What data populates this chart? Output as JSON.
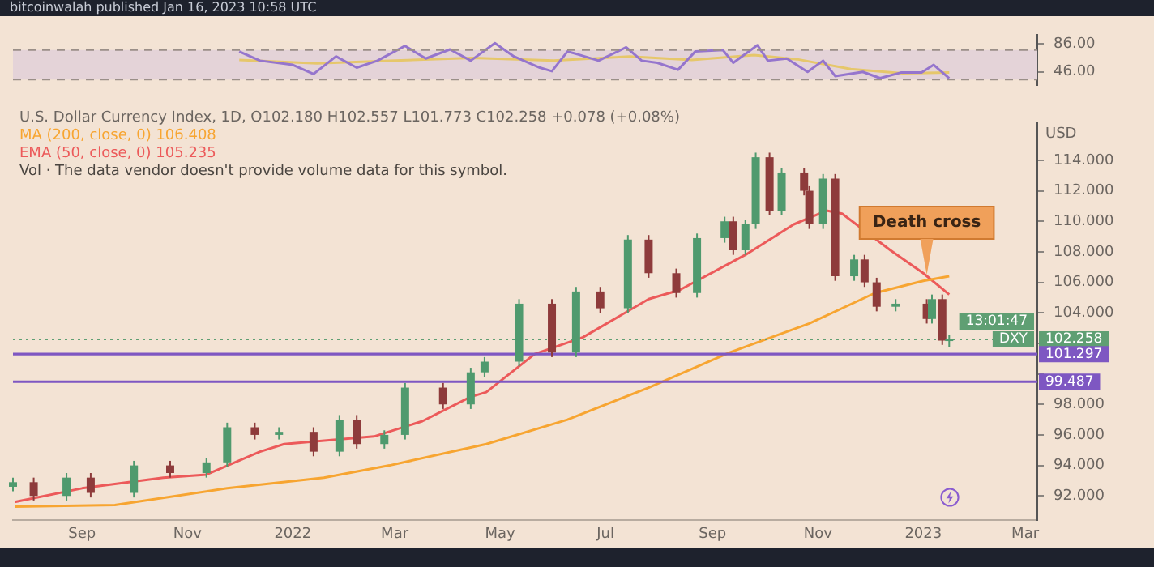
{
  "chart_data": [
    {
      "type": "line",
      "title": "bitcoinwalah published Jan 16, 2023 10:58 UTC",
      "tick_labels": "y",
      "xlim": [
        "2021-07-23",
        "2023-03-08"
      ],
      "ylim": [
        27,
        99
      ],
      "yticks": [
        {
          "value": 46,
          "label": "46.00"
        },
        {
          "value": 86,
          "label": "86.00"
        }
      ],
      "bands": [
        {
          "axis": "y",
          "from": 35,
          "to": 77,
          "color": "#e4d3d8"
        }
      ],
      "ref_lines": [
        {
          "axis": "y",
          "value": 77,
          "color": "#9a8f88",
          "line_style": "dashed"
        },
        {
          "axis": "y",
          "value": 35,
          "color": "#9a8f88",
          "line_style": "dashed"
        }
      ],
      "series": [
        {
          "color": "#9575cd",
          "x": [
            "2021-12-01",
            "2021-12-13",
            "2022-01-01",
            "2022-01-13",
            "2022-01-26",
            "2022-02-07",
            "2022-02-19",
            "2022-03-07",
            "2022-03-19",
            "2022-04-02",
            "2022-04-14",
            "2022-04-28",
            "2022-05-09",
            "2022-05-24",
            "2022-05-31",
            "2022-06-09",
            "2022-06-15",
            "2022-06-27",
            "2022-07-13",
            "2022-07-22",
            "2022-07-31",
            "2022-08-12",
            "2022-08-22",
            "2022-09-07",
            "2022-09-13",
            "2022-09-27",
            "2022-10-03",
            "2022-10-14",
            "2022-10-26",
            "2022-11-04",
            "2022-11-11",
            "2022-11-27",
            "2022-12-07",
            "2022-12-19",
            "2022-12-31",
            "2023-01-07",
            "2023-01-16"
          ],
          "values": [
            75,
            62,
            56,
            43,
            68,
            52,
            62,
            83,
            65,
            78,
            62,
            87,
            68,
            52,
            47,
            75,
            71,
            62,
            81,
            62,
            59,
            49,
            75,
            77,
            59,
            84,
            62,
            65,
            46,
            62,
            40,
            46,
            37,
            45,
            45,
            56,
            37
          ]
        },
        {
          "color": "#e6c76b",
          "x": [
            "2021-12-01",
            "2022-01-15",
            "2022-03-01",
            "2022-04-15",
            "2022-06-01",
            "2022-07-15",
            "2022-08-20",
            "2022-09-25",
            "2022-10-20",
            "2022-11-20",
            "2022-12-20",
            "2023-01-16"
          ],
          "values": [
            63,
            58,
            62,
            66,
            62,
            68,
            63,
            70,
            64,
            50,
            44,
            45
          ]
        }
      ]
    },
    {
      "type": "candlestick",
      "title": "U.S. Dollar Currency Index, 1D, O102.180 H102.557 L101.773 C102.258 +0.078 (+0.08%)",
      "ylabel": "USD",
      "legend": "top left",
      "xlim": [
        "2021-07-23",
        "2023-03-08"
      ],
      "xticks": [
        {
          "value": "2021-09-01",
          "label": "Sep"
        },
        {
          "value": "2021-11-01",
          "label": "Nov"
        },
        {
          "value": "2022-01-01",
          "label": "2022"
        },
        {
          "value": "2022-03-01",
          "label": "Mar"
        },
        {
          "value": "2022-05-01",
          "label": "May"
        },
        {
          "value": "2022-07-01",
          "label": "Jul"
        },
        {
          "value": "2022-09-01",
          "label": "Sep"
        },
        {
          "value": "2022-11-01",
          "label": "Nov"
        },
        {
          "value": "2023-01-01",
          "label": "2023"
        },
        {
          "value": "2023-03-01",
          "label": "Mar"
        }
      ],
      "ylim": [
        90.4,
        116.5
      ],
      "yticks": [
        {
          "value": 92,
          "label": "92.000"
        },
        {
          "value": 94,
          "label": "94.000"
        },
        {
          "value": 96,
          "label": "96.000"
        },
        {
          "value": 98,
          "label": "98.000"
        },
        {
          "value": 100,
          "label": null
        },
        {
          "value": 102,
          "label": null
        },
        {
          "value": 104,
          "label": "104.000"
        },
        {
          "value": 106,
          "label": "106.000"
        },
        {
          "value": 108,
          "label": "108.000"
        },
        {
          "value": 110,
          "label": "110.000"
        },
        {
          "value": 112,
          "label": "112.000"
        },
        {
          "value": 114,
          "label": "114.000"
        }
      ],
      "x": [
        "2021-07-23",
        "2021-08-04",
        "2021-08-23",
        "2021-09-06",
        "2021-10-01",
        "2021-10-22",
        "2021-11-12",
        "2021-11-24",
        "2021-12-10",
        "2021-12-24",
        "2022-01-13",
        "2022-01-28",
        "2022-02-07",
        "2022-02-23",
        "2022-03-07",
        "2022-03-29",
        "2022-04-14",
        "2022-04-22",
        "2022-05-12",
        "2022-05-31",
        "2022-06-14",
        "2022-06-28",
        "2022-07-14",
        "2022-07-26",
        "2022-08-11",
        "2022-08-23",
        "2022-09-08",
        "2022-09-13",
        "2022-09-20",
        "2022-09-26",
        "2022-10-04",
        "2022-10-11",
        "2022-10-24",
        "2022-10-27",
        "2022-11-04",
        "2022-11-11",
        "2022-11-22",
        "2022-11-28",
        "2022-12-05",
        "2022-12-16",
        "2023-01-03",
        "2023-01-06",
        "2023-01-12",
        "2023-01-16"
      ],
      "ohlc": [
        [
          92.6,
          93.2,
          92.3,
          92.9
        ],
        [
          92.9,
          93.2,
          91.7,
          92.0
        ],
        [
          92.0,
          93.5,
          91.7,
          93.2
        ],
        [
          93.2,
          93.5,
          91.9,
          92.2
        ],
        [
          92.2,
          94.3,
          91.9,
          94.0
        ],
        [
          94.0,
          94.3,
          93.2,
          93.5
        ],
        [
          93.5,
          94.5,
          93.2,
          94.2
        ],
        [
          94.2,
          96.8,
          93.9,
          96.5
        ],
        [
          96.5,
          96.8,
          95.7,
          96.0
        ],
        [
          96.0,
          96.5,
          95.7,
          96.2
        ],
        [
          96.2,
          96.5,
          94.6,
          94.9
        ],
        [
          94.9,
          97.3,
          94.6,
          97.0
        ],
        [
          97.0,
          97.3,
          95.1,
          95.4
        ],
        [
          95.4,
          96.3,
          95.1,
          96.0
        ],
        [
          96.0,
          99.4,
          95.7,
          99.1
        ],
        [
          99.1,
          99.4,
          97.7,
          98.0
        ],
        [
          98.0,
          100.4,
          97.7,
          100.1
        ],
        [
          100.1,
          101.1,
          99.8,
          100.8
        ],
        [
          100.8,
          104.9,
          100.5,
          104.6
        ],
        [
          104.6,
          104.9,
          101.1,
          101.4
        ],
        [
          101.4,
          105.7,
          101.1,
          105.4
        ],
        [
          105.4,
          105.7,
          104.0,
          104.3
        ],
        [
          104.3,
          109.1,
          104.0,
          108.8
        ],
        [
          108.8,
          109.1,
          106.3,
          106.6
        ],
        [
          106.6,
          106.9,
          105.0,
          105.3
        ],
        [
          105.3,
          109.2,
          105.0,
          108.9
        ],
        [
          108.9,
          110.3,
          108.6,
          110.0
        ],
        [
          110.0,
          110.3,
          107.8,
          108.1
        ],
        [
          108.1,
          110.1,
          107.8,
          109.8
        ],
        [
          109.8,
          114.5,
          109.5,
          114.2
        ],
        [
          114.2,
          114.5,
          110.4,
          110.7
        ],
        [
          110.7,
          113.5,
          110.4,
          113.2
        ],
        [
          113.2,
          113.5,
          111.7,
          112.0
        ],
        [
          112.0,
          112.3,
          109.5,
          109.8
        ],
        [
          109.8,
          113.1,
          109.5,
          112.8
        ],
        [
          112.8,
          113.1,
          106.1,
          106.4
        ],
        [
          106.4,
          107.8,
          106.1,
          107.5
        ],
        [
          107.5,
          107.8,
          105.7,
          106.0
        ],
        [
          106.0,
          106.3,
          104.1,
          104.4
        ],
        [
          104.4,
          104.9,
          104.1,
          104.6
        ],
        [
          104.6,
          104.9,
          103.3,
          103.6
        ],
        [
          103.6,
          105.2,
          103.3,
          104.9
        ],
        [
          104.9,
          105.2,
          101.9,
          102.18
        ],
        [
          102.18,
          102.557,
          101.773,
          102.258
        ]
      ],
      "colors": [
        "#4f9a6e",
        "#8e3b3b",
        "#4f9a6e",
        "#8e3b3b",
        "#4f9a6e",
        "#8e3b3b",
        "#4f9a6e",
        "#4f9a6e",
        "#8e3b3b",
        "#4f9a6e",
        "#8e3b3b",
        "#4f9a6e",
        "#8e3b3b",
        "#4f9a6e",
        "#4f9a6e",
        "#8e3b3b",
        "#4f9a6e",
        "#4f9a6e",
        "#4f9a6e",
        "#8e3b3b",
        "#4f9a6e",
        "#8e3b3b",
        "#4f9a6e",
        "#8e3b3b",
        "#8e3b3b",
        "#4f9a6e",
        "#4f9a6e",
        "#8e3b3b",
        "#4f9a6e",
        "#4f9a6e",
        "#8e3b3b",
        "#4f9a6e",
        "#8e3b3b",
        "#8e3b3b",
        "#4f9a6e",
        "#8e3b3b",
        "#4f9a6e",
        "#8e3b3b",
        "#8e3b3b",
        "#4f9a6e",
        "#8e3b3b",
        "#4f9a6e",
        "#8e3b3b",
        "#4f9a6e"
      ],
      "series": [
        {
          "type": "line",
          "name": "MA (200, close, 0) 106.408",
          "color": "#f7a531",
          "x": [
            "2021-07-24",
            "2021-09-20",
            "2021-11-24",
            "2022-01-19",
            "2022-02-26",
            "2022-04-23",
            "2022-06-09",
            "2022-07-26",
            "2022-09-11",
            "2022-10-27",
            "2022-12-04",
            "2023-01-01",
            "2023-01-16"
          ],
          "values": [
            91.3,
            91.4,
            92.5,
            93.2,
            94.0,
            95.4,
            97.0,
            99.1,
            101.4,
            103.3,
            105.3,
            106.1,
            106.4
          ]
        },
        {
          "type": "line",
          "name": "EMA (50, close, 0) 105.235",
          "color": "#ec5a5a",
          "x": [
            "2021-07-24",
            "2021-09-01",
            "2021-10-18",
            "2021-11-12",
            "2021-12-13",
            "2021-12-27",
            "2022-02-17",
            "2022-03-17",
            "2022-04-14",
            "2022-04-23",
            "2022-05-21",
            "2022-06-18",
            "2022-07-26",
            "2022-08-13",
            "2022-09-20",
            "2022-10-18",
            "2022-11-06",
            "2022-11-15",
            "2022-12-13",
            "2023-01-01",
            "2023-01-16"
          ],
          "values": [
            91.6,
            92.5,
            93.2,
            93.4,
            94.9,
            95.4,
            95.9,
            96.9,
            98.5,
            98.8,
            101.3,
            102.4,
            104.9,
            105.5,
            107.8,
            109.8,
            110.7,
            110.5,
            108.1,
            106.6,
            105.2
          ]
        }
      ],
      "ref_lines": [
        {
          "axis": "y",
          "value": 102.258,
          "label": "102.258",
          "color": "#5f9f73",
          "line_style": "dotted"
        },
        {
          "axis": "y",
          "value": 101.297,
          "label": "101.297",
          "color": "#7e57c2"
        },
        {
          "axis": "y",
          "value": 99.487,
          "label": "99.487",
          "color": "#7e57c2"
        }
      ],
      "annotations": [
        "Vol · The data vendor doesn't provide volume data for this symbol.",
        {
          "text": "Death cross",
          "x": "2023-01-03",
          "y": 106.3
        },
        {
          "text": "DXY",
          "y": 102.258
        },
        {
          "text": "13:01:47",
          "y": 102.258
        }
      ]
    }
  ]
}
